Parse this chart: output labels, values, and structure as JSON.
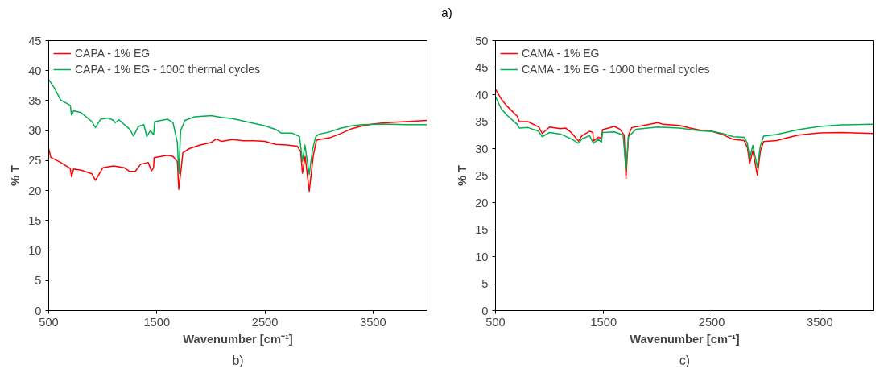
{
  "chart_data": [
    {
      "type": "line",
      "xlabel": "Wavenumber [cm⁻¹]",
      "ylabel": "% T",
      "annotations": [
        "a)",
        "b)"
      ],
      "xlim": [
        500,
        4000
      ],
      "ylim": [
        0,
        45
      ],
      "xticks": [
        500,
        1500,
        2500,
        3500
      ],
      "yticks": [
        0,
        5,
        10,
        15,
        20,
        25,
        30,
        35,
        40,
        45
      ],
      "grid": false,
      "legend": "top left",
      "marker": "none",
      "line_style": "solid",
      "series": [
        {
          "name": "CAPA - 1% EG",
          "color": "#ff0000",
          "x": [
            500,
            520,
            600,
            700,
            711,
            730,
            800,
            900,
            932,
            1000,
            1100,
            1200,
            1250,
            1300,
            1350,
            1420,
            1450,
            1470,
            1475,
            1600,
            1650,
            1690,
            1703,
            1741,
            1800,
            1900,
            2000,
            2050,
            2100,
            2200,
            2300,
            2400,
            2500,
            2600,
            2700,
            2800,
            2830,
            2847,
            2872,
            2910,
            2947,
            2977,
            3000,
            3100,
            3200,
            3300,
            3400,
            3500,
            3600,
            3800,
            4000
          ],
          "values": [
            27,
            25.5,
            24.8,
            23.7,
            22.3,
            23.6,
            23.4,
            22.8,
            21.7,
            23.8,
            24.1,
            23.8,
            23.2,
            23.2,
            24.4,
            24.7,
            23.3,
            23.8,
            25.5,
            25.9,
            25.7,
            24.8,
            20.2,
            26.3,
            27,
            27.6,
            28,
            28.6,
            28.2,
            28.5,
            28.3,
            28.3,
            28.2,
            27.7,
            27.6,
            27.4,
            26.5,
            22.9,
            25.7,
            19.9,
            25.8,
            28.4,
            28.5,
            28.8,
            29.5,
            30.3,
            30.8,
            31.1,
            31.3,
            31.5,
            31.7
          ]
        },
        {
          "name": "CAPA - 1% EG - 1000 thermal cycles",
          "color": "#00b050",
          "x": [
            500,
            550,
            610,
            700,
            711,
            730,
            800,
            900,
            932,
            980,
            1050,
            1100,
            1113,
            1150,
            1250,
            1284,
            1330,
            1380,
            1407,
            1440,
            1470,
            1480,
            1600,
            1650,
            1690,
            1703,
            1720,
            1760,
            1850,
            2000,
            2100,
            2200,
            2300,
            2400,
            2500,
            2600,
            2650,
            2750,
            2820,
            2847,
            2870,
            2910,
            2940,
            2970,
            3000,
            3100,
            3200,
            3300,
            3400,
            3600,
            3800,
            4000
          ],
          "values": [
            38.5,
            37.2,
            35.1,
            34.2,
            32.6,
            33.3,
            33,
            31.5,
            30.5,
            31.9,
            32.1,
            31.7,
            31.3,
            31.8,
            30.2,
            29.1,
            30.7,
            31,
            29,
            30,
            29.3,
            31.5,
            31.9,
            31.3,
            28,
            22.8,
            30,
            31.7,
            32.3,
            32.5,
            32.2,
            32,
            31.6,
            31.2,
            30.8,
            30.2,
            29.6,
            29.6,
            29,
            24.9,
            27.6,
            22.7,
            26.8,
            29,
            29.4,
            29.8,
            30.4,
            30.8,
            31,
            31.1,
            31,
            31
          ]
        }
      ]
    },
    {
      "type": "line",
      "xlabel": "Wavenumber [cm⁻¹]",
      "ylabel": "% T",
      "annotations": [
        "c)"
      ],
      "xlim": [
        500,
        4000
      ],
      "ylim": [
        0,
        50
      ],
      "xticks": [
        500,
        1500,
        2500,
        3500
      ],
      "yticks": [
        0,
        5,
        10,
        15,
        20,
        25,
        30,
        35,
        40,
        45,
        50
      ],
      "grid": false,
      "legend": "top left",
      "marker": "none",
      "line_style": "solid",
      "series": [
        {
          "name": "CAMA - 1% EG",
          "color": "#ff0000",
          "x": [
            500,
            550,
            600,
            700,
            721,
            800,
            900,
            932,
            1000,
            1100,
            1150,
            1200,
            1267,
            1300,
            1370,
            1400,
            1405,
            1450,
            1480,
            1490,
            1600,
            1650,
            1690,
            1707,
            1730,
            1760,
            1900,
            2000,
            2050,
            2200,
            2300,
            2400,
            2500,
            2600,
            2700,
            2800,
            2830,
            2851,
            2880,
            2922,
            2950,
            2980,
            3100,
            3200,
            3300,
            3500,
            3700,
            4000
          ],
          "values": [
            41,
            39.3,
            38,
            36,
            35,
            35,
            34,
            32.8,
            34,
            33.7,
            33.8,
            33,
            31.4,
            32.4,
            33.2,
            33,
            31.4,
            32.1,
            31.9,
            33.5,
            34.1,
            33.6,
            32.5,
            24.5,
            32.5,
            33.9,
            34.4,
            34.8,
            34.5,
            34.3,
            33.8,
            33.4,
            33.2,
            32.6,
            31.7,
            31.5,
            30.2,
            27.2,
            29.6,
            25.1,
            29.5,
            31.3,
            31.5,
            32,
            32.5,
            32.9,
            33,
            32.8
          ]
        },
        {
          "name": "CAMA - 1% EG - 1000 thermal cycles",
          "color": "#00b050",
          "x": [
            500,
            550,
            600,
            700,
            721,
            800,
            900,
            932,
            1000,
            1100,
            1200,
            1267,
            1300,
            1370,
            1405,
            1450,
            1480,
            1490,
            1600,
            1680,
            1707,
            1730,
            1800,
            2000,
            2200,
            2400,
            2500,
            2600,
            2700,
            2800,
            2830,
            2851,
            2880,
            2922,
            2950,
            2980,
            3100,
            3300,
            3500,
            3700,
            4000
          ],
          "values": [
            39.6,
            37.5,
            36.3,
            34.5,
            33.8,
            33.9,
            33.2,
            32.2,
            33,
            32.7,
            31.8,
            31,
            31.8,
            32.4,
            31,
            31.7,
            31.2,
            33,
            33.1,
            32.5,
            26.2,
            32.2,
            33.6,
            34,
            33.8,
            33.3,
            33.2,
            32.8,
            32.2,
            32.1,
            31,
            28.2,
            30.6,
            26.6,
            30.5,
            32.3,
            32.6,
            33.5,
            34.1,
            34.4,
            34.5
          ]
        }
      ]
    }
  ]
}
